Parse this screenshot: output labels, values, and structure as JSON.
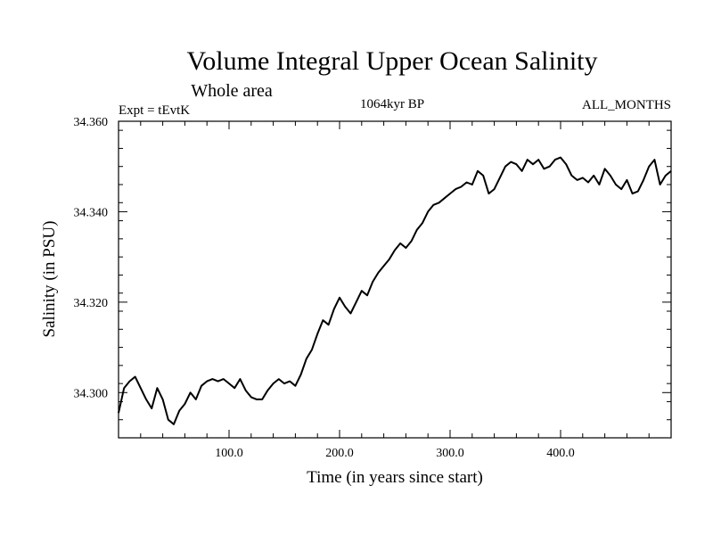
{
  "chart_data": {
    "type": "line",
    "title": "Volume Integral Upper Ocean Salinity",
    "subtitle": "Whole area",
    "experiment_label": "Expt = tEvtK",
    "period_label": "1064kyr BP",
    "months_label": "ALL_MONTHS",
    "xlabel": "Time (in years since start)",
    "ylabel": "Salinity (in PSU)",
    "xlim": [
      0,
      500
    ],
    "ylim": [
      34.29,
      34.36
    ],
    "x_ticks": [
      100,
      200,
      300,
      400
    ],
    "x_tick_labels": [
      "100.0",
      "200.0",
      "300.0",
      "400.0"
    ],
    "y_ticks": [
      34.3,
      34.32,
      34.34,
      34.36
    ],
    "y_tick_labels": [
      "34.300",
      "34.320",
      "34.340",
      "34.360"
    ],
    "series": [
      {
        "name": "salinity",
        "x": [
          0,
          5,
          10,
          15,
          20,
          25,
          30,
          35,
          40,
          45,
          50,
          55,
          60,
          65,
          70,
          75,
          80,
          85,
          90,
          95,
          100,
          105,
          110,
          115,
          120,
          125,
          130,
          135,
          140,
          145,
          150,
          155,
          160,
          165,
          170,
          175,
          180,
          185,
          190,
          195,
          200,
          205,
          210,
          215,
          220,
          225,
          230,
          235,
          240,
          245,
          250,
          255,
          260,
          265,
          270,
          275,
          280,
          285,
          290,
          295,
          300,
          305,
          310,
          315,
          320,
          325,
          330,
          335,
          340,
          345,
          350,
          355,
          360,
          365,
          370,
          375,
          380,
          385,
          390,
          395,
          400,
          405,
          410,
          415,
          420,
          425,
          430,
          435,
          440,
          445,
          450,
          455,
          460,
          465,
          470,
          475,
          480,
          485,
          490,
          495,
          500
        ],
        "values": [
          34.2955,
          34.301,
          34.3025,
          34.3035,
          34.301,
          34.2985,
          34.2965,
          34.301,
          34.2985,
          34.294,
          34.293,
          34.296,
          34.2975,
          34.3,
          34.2985,
          34.3015,
          34.3025,
          34.303,
          34.3025,
          34.303,
          34.302,
          34.301,
          34.303,
          34.3005,
          34.299,
          34.2985,
          34.2985,
          34.3005,
          34.302,
          34.303,
          34.302,
          34.3025,
          34.3015,
          34.304,
          34.3075,
          34.3095,
          34.313,
          34.316,
          34.315,
          34.3185,
          34.321,
          34.319,
          34.3175,
          34.32,
          34.3225,
          34.3215,
          34.3245,
          34.3265,
          34.328,
          34.3295,
          34.3315,
          34.333,
          34.332,
          34.3335,
          34.336,
          34.3375,
          34.34,
          34.3415,
          34.342,
          34.343,
          34.344,
          34.345,
          34.3455,
          34.3465,
          34.346,
          34.349,
          34.348,
          34.344,
          34.345,
          34.3475,
          34.35,
          34.351,
          34.3505,
          34.349,
          34.3515,
          34.3505,
          34.3515,
          34.3495,
          34.35,
          34.3515,
          34.352,
          34.3505,
          34.348,
          34.347,
          34.3475,
          34.3465,
          34.348,
          34.346,
          34.3495,
          34.348,
          34.346,
          34.345,
          34.347,
          34.344,
          34.3445,
          34.347,
          34.35,
          34.3515,
          34.346,
          34.348,
          34.349
        ]
      }
    ]
  }
}
